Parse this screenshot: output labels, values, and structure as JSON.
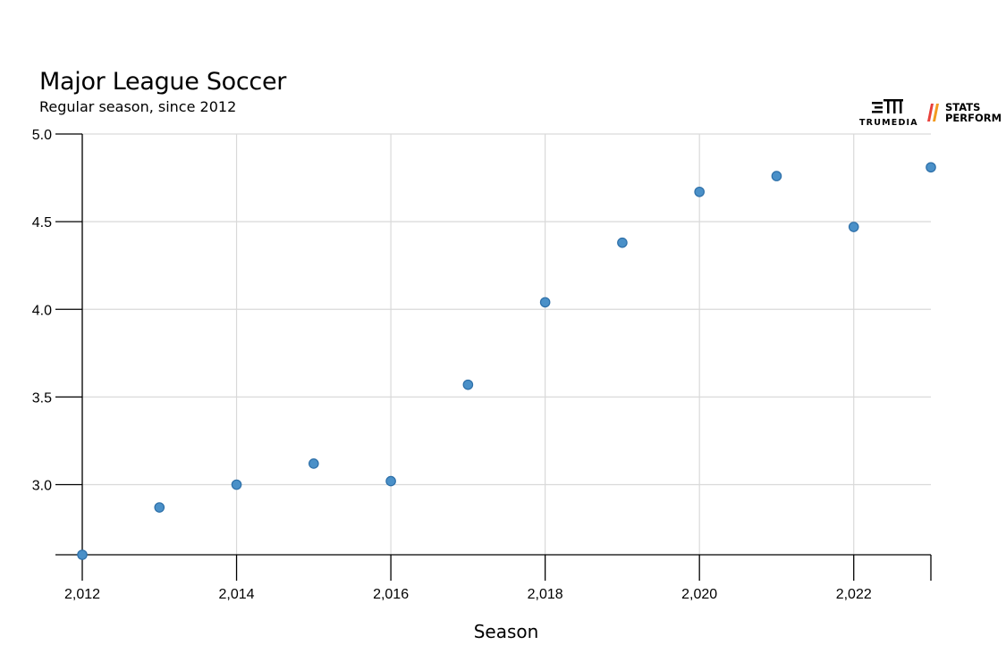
{
  "chart_data": {
    "type": "scatter",
    "title": "Major League Soccer",
    "subtitle": "Regular season, since 2012",
    "xlabel": "Season",
    "ylabel": "",
    "x": [
      2012,
      2013,
      2014,
      2015,
      2016,
      2017,
      2018,
      2019,
      2020,
      2021,
      2022,
      2023
    ],
    "y": [
      2.6,
      2.87,
      3.0,
      3.12,
      3.02,
      3.57,
      4.04,
      4.38,
      4.67,
      4.76,
      4.47,
      4.81
    ],
    "xlim": [
      2012,
      2023
    ],
    "ylim": [
      2.6,
      5.0
    ],
    "xticks": [
      2012,
      2014,
      2016,
      2018,
      2020,
      2022
    ],
    "xtick_labels": [
      "2,012",
      "2,014",
      "2,016",
      "2,018",
      "2,020",
      "2,022"
    ],
    "yticks": [
      3.0,
      3.5,
      4.0,
      4.5,
      5.0
    ],
    "ytick_labels": [
      "3.0",
      "3.5",
      "4.0",
      "4.5",
      "5.0"
    ],
    "grid": true,
    "point_color": "#4a90c8",
    "point_stroke": "#2d6fa8"
  },
  "logos": {
    "trumedia_text": "TRUMEDIA",
    "stats_line1": "STATS",
    "stats_line2": "PERFORM"
  }
}
